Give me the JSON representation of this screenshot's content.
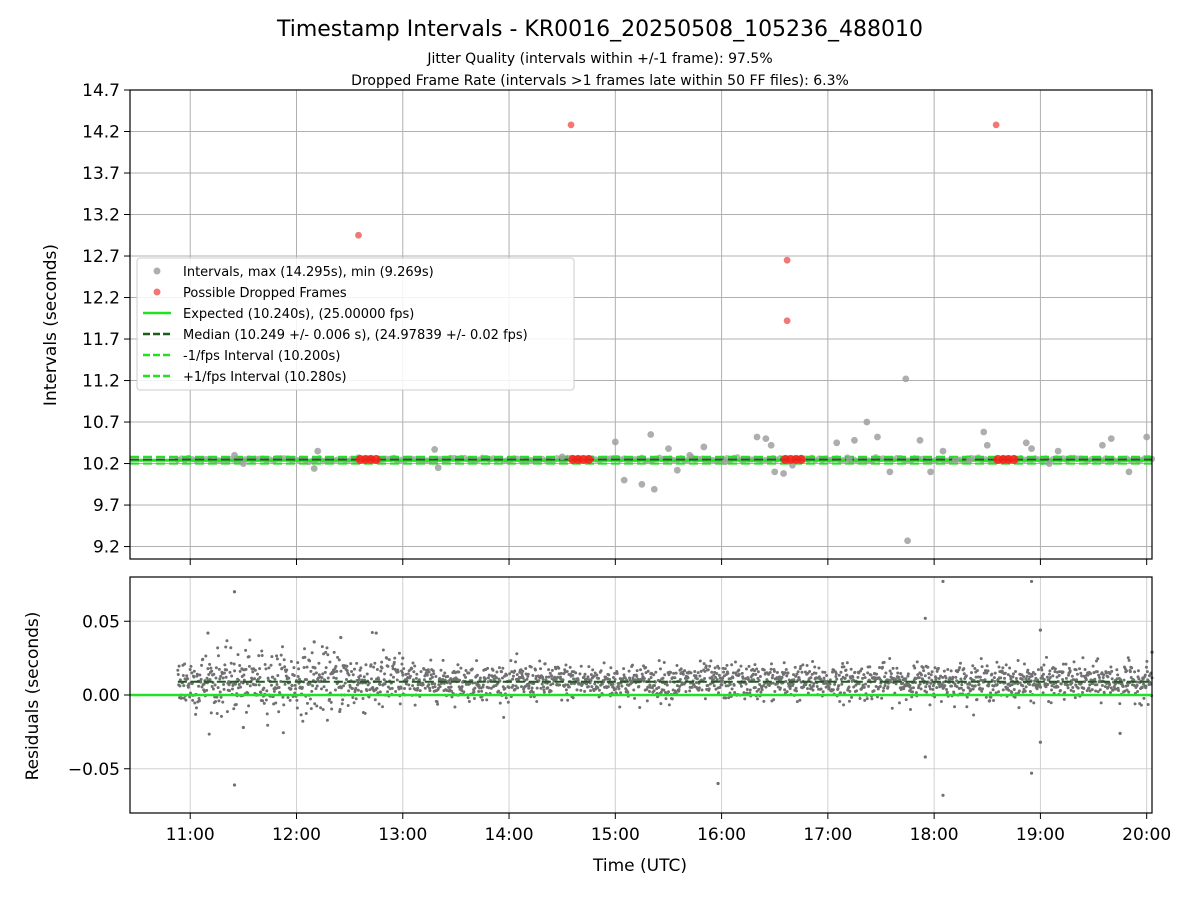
{
  "figure": {
    "title": "Timestamp Intervals - KR0016_20250508_105236_488010",
    "subtitle_line1": "Jitter Quality (intervals within +/-1 frame): 97.5%",
    "subtitle_line2": "Dropped Frame Rate (intervals >1 frames late within 50 FF files): 6.3%"
  },
  "chart_data": [
    {
      "type": "scatter",
      "panel": "intervals",
      "xlabel": "",
      "ylabel": "Intervals (seconds)",
      "xlim": [
        "10:26",
        "20:03"
      ],
      "ylim": [
        9.05,
        14.7
      ],
      "yticks": [
        9.2,
        9.7,
        10.2,
        10.7,
        11.2,
        11.7,
        12.2,
        12.7,
        13.2,
        13.7,
        14.2,
        14.7
      ],
      "ytick_labels": [
        "9.2",
        "9.7",
        "10.2",
        "10.7",
        "11.2",
        "11.7",
        "12.2",
        "12.7",
        "13.2",
        "13.7",
        "14.2",
        "14.7"
      ],
      "grid": true,
      "legend_position": "center-left",
      "legend": [
        {
          "label": "Intervals, max (14.295s), min (9.269s)",
          "kind": "marker",
          "color": "#a0a0a0"
        },
        {
          "label": "Possible Dropped Frames",
          "kind": "marker",
          "color": "#f06060"
        },
        {
          "label": "Expected (10.240s), (25.00000 fps)",
          "kind": "solid",
          "color": "#22e022"
        },
        {
          "label": "Median (10.249 +/- 0.006 s), (24.97839 +/- 0.02 fps)",
          "kind": "dashed",
          "color": "#1a5e1a"
        },
        {
          "label": "-1/fps Interval (10.200s)",
          "kind": "dashed",
          "color": "#22e022"
        },
        {
          "label": "+1/fps Interval (10.280s)",
          "kind": "dashed",
          "color": "#22e022"
        }
      ],
      "lines": {
        "expected": 10.24,
        "median": 10.249,
        "minus_one_frame": 10.2,
        "plus_one_frame": 10.28
      },
      "series": [
        {
          "name": "Intervals, max (14.295s), min (9.269s)",
          "color": "#a0a0a0",
          "points": [
            [
              "15:00",
              10.46
            ],
            [
              "15:05",
              10.0
            ],
            [
              "15:15",
              9.95
            ],
            [
              "15:20",
              10.55
            ],
            [
              "15:22",
              9.89
            ],
            [
              "15:30",
              10.38
            ],
            [
              "15:35",
              10.12
            ],
            [
              "15:50",
              10.4
            ],
            [
              "16:20",
              10.52
            ],
            [
              "16:25",
              10.5
            ],
            [
              "16:28",
              10.42
            ],
            [
              "16:30",
              10.1
            ],
            [
              "16:35",
              10.08
            ],
            [
              "17:05",
              10.45
            ],
            [
              "17:15",
              10.48
            ],
            [
              "17:22",
              10.7
            ],
            [
              "17:28",
              10.52
            ],
            [
              "17:35",
              10.1
            ],
            [
              "17:44",
              11.22
            ],
            [
              "17:45",
              9.27
            ],
            [
              "17:52",
              10.48
            ],
            [
              "17:58",
              10.1
            ],
            [
              "18:05",
              10.35
            ],
            [
              "18:28",
              10.58
            ],
            [
              "18:30",
              10.42
            ],
            [
              "18:52",
              10.45
            ],
            [
              "18:55",
              10.38
            ],
            [
              "19:10",
              10.35
            ],
            [
              "19:35",
              10.42
            ],
            [
              "19:40",
              10.5
            ],
            [
              "19:50",
              10.1
            ],
            [
              "20:00",
              10.52
            ],
            [
              "15:42",
              10.3
            ],
            [
              "16:02",
              10.22
            ],
            [
              "16:40",
              10.18
            ],
            [
              "17:12",
              10.25
            ],
            [
              "18:12",
              10.24
            ],
            [
              "11:30",
              10.2
            ],
            [
              "11:25",
              10.3
            ],
            [
              "12:10",
              10.14
            ],
            [
              "12:12",
              10.35
            ],
            [
              "13:18",
              10.37
            ],
            [
              "13:20",
              10.15
            ],
            [
              "14:30",
              10.28
            ],
            [
              "18:20",
              10.24
            ],
            [
              "19:05",
              10.2
            ]
          ]
        },
        {
          "name": "Possible Dropped Frames",
          "color": "#f06060",
          "points": [
            [
              "12:35",
              12.95
            ],
            [
              "14:35",
              14.28
            ],
            [
              "16:37",
              12.65
            ],
            [
              "16:37",
              11.92
            ],
            [
              "18:35",
              14.28
            ],
            [
              "12:36",
              10.25
            ],
            [
              "12:39",
              10.25
            ],
            [
              "12:42",
              10.25
            ],
            [
              "12:45",
              10.25
            ],
            [
              "14:36",
              10.25
            ],
            [
              "14:39",
              10.25
            ],
            [
              "14:42",
              10.25
            ],
            [
              "14:45",
              10.25
            ],
            [
              "16:36",
              10.25
            ],
            [
              "16:39",
              10.25
            ],
            [
              "16:42",
              10.25
            ],
            [
              "16:45",
              10.25
            ],
            [
              "18:36",
              10.25
            ],
            [
              "18:39",
              10.25
            ],
            [
              "18:42",
              10.25
            ],
            [
              "18:45",
              10.25
            ]
          ]
        }
      ]
    },
    {
      "type": "scatter",
      "panel": "residuals",
      "xlabel": "Time (UTC)",
      "ylabel": "Residuals (seconds)",
      "xlim": [
        "10:26",
        "20:03"
      ],
      "ylim": [
        -0.08,
        0.08
      ],
      "yticks": [
        0.05,
        0.0,
        -0.05
      ],
      "ytick_labels": [
        "0.05",
        "0.00",
        "−0.05"
      ],
      "xticks": [
        "11:00",
        "12:00",
        "13:00",
        "14:00",
        "15:00",
        "16:00",
        "17:00",
        "18:00",
        "19:00",
        "20:00"
      ],
      "grid": true,
      "lines": {
        "expected": 0.0,
        "median": 0.009
      },
      "series": [
        {
          "name": "",
          "color": "#707070",
          "x_range": [
            "10:53",
            "20:03"
          ],
          "y_center": 0.009,
          "y_spread": 0.006,
          "outliers": [
            [
              "11:25",
              0.07
            ],
            [
              "11:25",
              -0.061
            ],
            [
              "15:58",
              -0.06
            ],
            [
              "17:55",
              0.052
            ],
            [
              "17:55",
              -0.042
            ],
            [
              "18:05",
              0.077
            ],
            [
              "18:05",
              -0.068
            ],
            [
              "18:55",
              0.077
            ],
            [
              "18:55",
              -0.053
            ],
            [
              "19:00",
              0.044
            ],
            [
              "19:00",
              -0.032
            ],
            [
              "19:45",
              -0.026
            ],
            [
              "20:03",
              0.029
            ],
            [
              "11:10",
              0.042
            ],
            [
              "12:25",
              0.039
            ],
            [
              "12:45",
              0.042
            ],
            [
              "13:00",
              0.025
            ],
            [
              "11:30",
              -0.022
            ],
            [
              "12:10",
              0.036
            ]
          ]
        }
      ]
    }
  ]
}
